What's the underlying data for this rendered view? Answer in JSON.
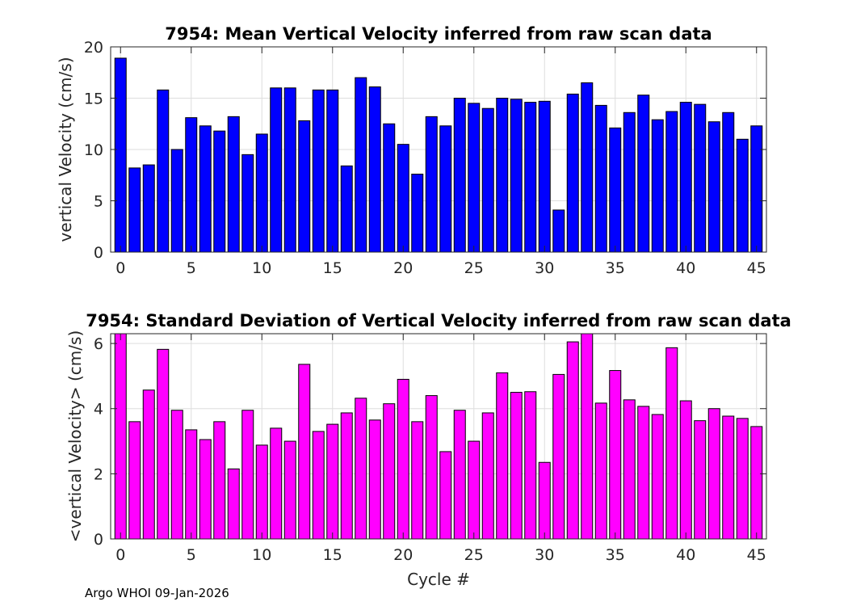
{
  "chart_data": [
    {
      "type": "bar",
      "title": "7954: Mean Vertical Velocity inferred from raw scan data",
      "xlabel": "",
      "ylabel": "vertical Velocity (cm/s)",
      "xlim": [
        -0.7,
        45.7
      ],
      "ylim": [
        0,
        20
      ],
      "xticks": [
        0,
        5,
        10,
        15,
        20,
        25,
        30,
        35,
        40,
        45
      ],
      "yticks": [
        0,
        5,
        10,
        15,
        20
      ],
      "grid": true,
      "bar_color": "#0000ff",
      "x": [
        0,
        1,
        2,
        3,
        4,
        5,
        6,
        7,
        8,
        9,
        10,
        11,
        12,
        13,
        14,
        15,
        16,
        17,
        18,
        19,
        20,
        21,
        22,
        23,
        24,
        25,
        26,
        27,
        28,
        29,
        30,
        31,
        32,
        33,
        34,
        35,
        36,
        37,
        38,
        39,
        40,
        41,
        42,
        43,
        44,
        45
      ],
      "values": [
        18.9,
        8.2,
        8.5,
        15.8,
        10.0,
        13.1,
        12.3,
        11.8,
        13.2,
        9.5,
        11.5,
        16.0,
        16.0,
        12.8,
        15.8,
        15.8,
        8.4,
        17.0,
        16.1,
        12.5,
        10.5,
        7.6,
        13.2,
        12.3,
        15.0,
        14.5,
        14.0,
        15.0,
        14.9,
        14.6,
        14.7,
        4.1,
        15.4,
        16.5,
        14.3,
        12.1,
        13.6,
        15.3,
        12.9,
        13.7,
        14.6,
        14.4,
        12.7,
        13.6,
        11.0,
        12.3
      ]
    },
    {
      "type": "bar",
      "title": "7954: Standard Deviation of Vertical Velocity inferred from raw scan data",
      "xlabel": "Cycle #",
      "ylabel": "<vertical Velocity> (cm/s)",
      "xlim": [
        -0.7,
        45.7
      ],
      "ylim": [
        0,
        6.3
      ],
      "xticks": [
        0,
        5,
        10,
        15,
        20,
        25,
        30,
        35,
        40,
        45
      ],
      "yticks": [
        0,
        2,
        4,
        6
      ],
      "grid": true,
      "bar_color": "#ff00ff",
      "x": [
        0,
        1,
        2,
        3,
        4,
        5,
        6,
        7,
        8,
        9,
        10,
        11,
        12,
        13,
        14,
        15,
        16,
        17,
        18,
        19,
        20,
        21,
        22,
        23,
        24,
        25,
        26,
        27,
        28,
        29,
        30,
        31,
        32,
        33,
        34,
        35,
        36,
        37,
        38,
        39,
        40,
        41,
        42,
        43,
        44,
        45
      ],
      "values": [
        6.4,
        3.6,
        4.57,
        5.82,
        3.95,
        3.35,
        3.05,
        3.6,
        2.15,
        3.95,
        2.88,
        3.4,
        3.0,
        5.36,
        3.3,
        3.52,
        3.87,
        4.32,
        3.65,
        4.15,
        4.9,
        3.6,
        4.4,
        2.68,
        3.95,
        3.0,
        3.87,
        5.1,
        4.5,
        4.52,
        2.35,
        5.05,
        6.05,
        6.4,
        4.17,
        5.17,
        4.27,
        4.07,
        3.82,
        5.87,
        4.24,
        3.63,
        4.0,
        3.77,
        3.7,
        3.45
      ]
    }
  ],
  "footer": "Argo WHOI 09-Jan-2026"
}
